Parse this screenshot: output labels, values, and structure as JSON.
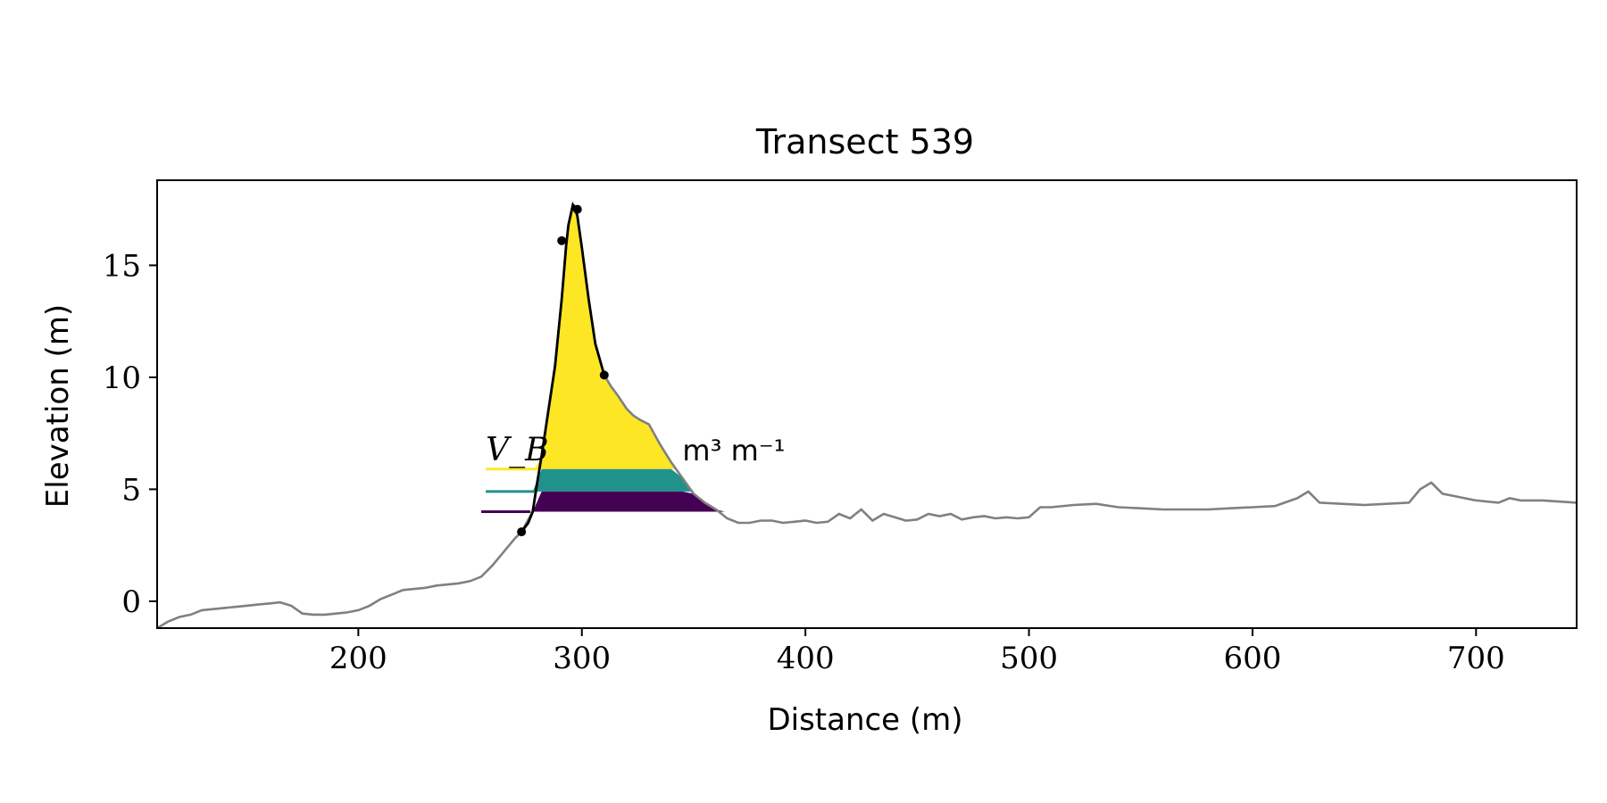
{
  "chart_data": {
    "type": "line",
    "title": "Transect 539",
    "xlabel": "Distance (m)",
    "ylabel": "Elevation (m)",
    "xlim": [
      110,
      745
    ],
    "ylim": [
      -1.2,
      18.8
    ],
    "xticks": [
      200,
      300,
      400,
      500,
      600,
      700
    ],
    "yticks": [
      0,
      5,
      10,
      15
    ],
    "grid": false,
    "colors": {
      "terrain": "#808080",
      "dune": "#000000",
      "fill_top": "#fde725",
      "fill_mid": "#21918c",
      "fill_low": "#440154"
    },
    "series": [
      {
        "role": "terrain",
        "x": [
          110,
          115,
          120,
          125,
          130,
          135,
          140,
          145,
          150,
          155,
          160,
          165,
          170,
          175,
          180,
          185,
          190,
          195,
          200,
          205,
          210,
          215,
          220,
          225,
          230,
          235,
          240,
          245,
          250,
          255,
          260,
          265,
          270,
          273,
          278,
          282,
          285,
          288,
          291,
          293,
          294,
          296,
          298,
          300,
          303,
          306,
          310,
          313,
          316,
          320,
          323,
          326,
          330,
          335,
          340,
          345,
          350,
          355,
          360,
          365,
          370,
          375,
          380,
          385,
          390,
          395,
          400,
          405,
          410,
          415,
          420,
          425,
          430,
          435,
          440,
          445,
          450,
          455,
          460,
          465,
          470,
          475,
          480,
          485,
          490,
          495,
          500,
          505,
          510,
          520,
          530,
          540,
          550,
          560,
          570,
          580,
          590,
          600,
          610,
          620,
          625,
          630,
          640,
          650,
          660,
          670,
          675,
          680,
          685,
          690,
          700,
          710,
          715,
          720,
          730,
          745
        ],
        "y": [
          -1.2,
          -0.9,
          -0.7,
          -0.6,
          -0.4,
          -0.35,
          -0.3,
          -0.25,
          -0.2,
          -0.15,
          -0.1,
          -0.05,
          -0.2,
          -0.55,
          -0.6,
          -0.6,
          -0.55,
          -0.5,
          -0.4,
          -0.2,
          0.1,
          0.3,
          0.5,
          0.55,
          0.6,
          0.7,
          0.75,
          0.8,
          0.9,
          1.1,
          1.6,
          2.2,
          2.8,
          3.1,
          4.0,
          6.5,
          8.5,
          10.5,
          13.5,
          15.9,
          16.8,
          17.7,
          17.2,
          15.8,
          13.5,
          11.5,
          10.1,
          9.6,
          9.2,
          8.6,
          8.3,
          8.1,
          7.9,
          7.0,
          6.2,
          5.5,
          4.8,
          4.4,
          4.1,
          3.7,
          3.5,
          3.5,
          3.6,
          3.6,
          3.5,
          3.55,
          3.6,
          3.5,
          3.55,
          3.9,
          3.7,
          4.1,
          3.6,
          3.9,
          3.75,
          3.6,
          3.65,
          3.9,
          3.8,
          3.9,
          3.65,
          3.75,
          3.8,
          3.7,
          3.75,
          3.7,
          3.75,
          4.2,
          4.2,
          4.3,
          4.35,
          4.2,
          4.15,
          4.1,
          4.1,
          4.1,
          4.15,
          4.2,
          4.25,
          4.6,
          4.9,
          4.4,
          4.35,
          4.3,
          4.35,
          4.4,
          5.0,
          5.3,
          4.8,
          4.7,
          4.5,
          4.4,
          4.6,
          4.5,
          4.5,
          4.4
        ]
      },
      {
        "role": "dune",
        "x": [
          273,
          276,
          278,
          280,
          282,
          285,
          288,
          291,
          293,
          294,
          296,
          297,
          298,
          300,
          303,
          306,
          310
        ],
        "y": [
          3.1,
          3.5,
          4.0,
          5.3,
          6.5,
          8.5,
          10.5,
          13.5,
          15.9,
          16.8,
          17.7,
          17.6,
          17.2,
          15.8,
          13.5,
          11.5,
          10.1
        ]
      }
    ],
    "markers": {
      "x": [
        273,
        291,
        298,
        310
      ],
      "y": [
        3.1,
        16.1,
        17.5,
        10.1
      ]
    },
    "bands": [
      {
        "role": "fill_top",
        "y_low": 5.9,
        "y_high": null,
        "x_start": 279,
        "x_end": 342,
        "line_x0": 257,
        "line_x1": 280
      },
      {
        "role": "fill_mid",
        "y_low": 4.9,
        "y_high": 5.9,
        "x_start": 278,
        "x_end": 355,
        "line_x0": 257,
        "line_x1": 279
      },
      {
        "role": "fill_low",
        "y_low": 4.0,
        "y_high": 4.9,
        "x_start": 277,
        "x_end": 364,
        "line_x0": 255,
        "line_x1": 277
      }
    ],
    "annotation": {
      "label": "V_B",
      "unit": "m³ m⁻¹",
      "x_label": 257,
      "x_unit": 345,
      "y": 6.3
    }
  }
}
